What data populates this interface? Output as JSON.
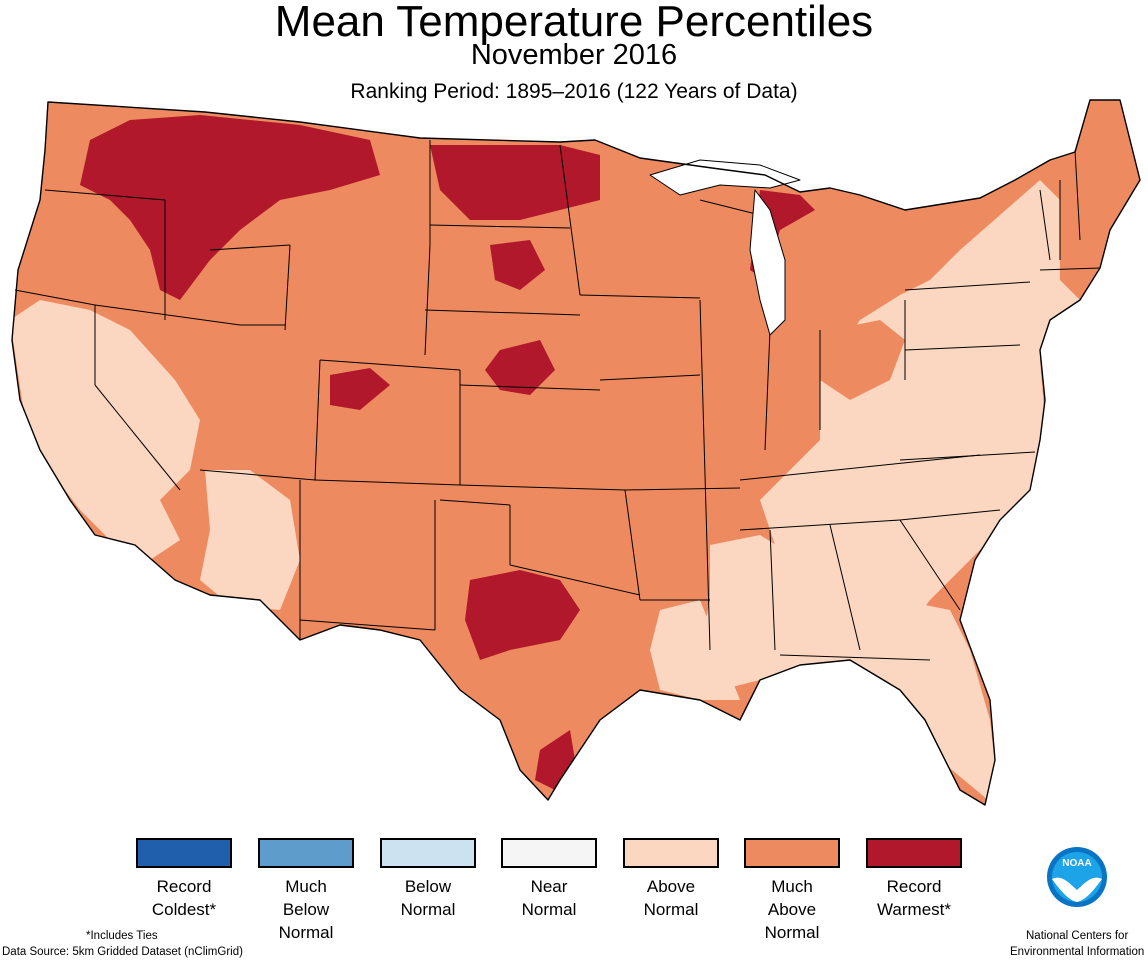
{
  "header": {
    "title": "Mean Temperature Percentiles",
    "subtitle": "November 2016",
    "ranking_period": "Ranking Period: 1895–2016 (122 Years of Data)"
  },
  "colors": {
    "record_coldest": "#1f5fab",
    "much_below": "#5e9ccc",
    "below": "#cde2f1",
    "near": "#f5f5f5",
    "above": "#fbd6c0",
    "much_above": "#ee8a5f",
    "record_warmest": "#b1182b",
    "background": "#ffffff",
    "noaa_blue": "#0a74c4",
    "noaa_sky": "#1ca3e8"
  },
  "legend": [
    {
      "label": "Record\nColdest*",
      "color_key": "record_coldest"
    },
    {
      "label": "Much\nBelow\nNormal",
      "color_key": "much_below"
    },
    {
      "label": "Below\nNormal",
      "color_key": "below"
    },
    {
      "label": "Near\nNormal",
      "color_key": "near"
    },
    {
      "label": "Above\nNormal",
      "color_key": "above"
    },
    {
      "label": "Much\nAbove\nNormal",
      "color_key": "much_above"
    },
    {
      "label": "Record\nWarmest*",
      "color_key": "record_warmest"
    }
  ],
  "footer": {
    "ties_note": "*Includes Ties",
    "data_source": "Data Source: 5km Gridded Dataset (nClimGrid)",
    "agency_line1": "National Centers for",
    "agency_line2": "Environmental Information"
  },
  "logo": {
    "text": "NOAA",
    "icon": "noaa-logo-icon"
  },
  "map": {
    "regions": [
      {
        "name": "northwest",
        "category": "much_above"
      },
      {
        "name": "northern-plains",
        "category": "much_above"
      },
      {
        "name": "central-plains",
        "category": "much_above"
      },
      {
        "name": "southwest",
        "category": "much_above"
      },
      {
        "name": "texas",
        "category": "much_above"
      },
      {
        "name": "upper-midwest",
        "category": "much_above"
      },
      {
        "name": "midwest",
        "category": "much_above"
      },
      {
        "name": "northeast",
        "category": "above"
      },
      {
        "name": "mid-atlantic",
        "category": "above"
      },
      {
        "name": "southeast",
        "category": "above"
      },
      {
        "name": "california",
        "category": "above"
      }
    ]
  }
}
